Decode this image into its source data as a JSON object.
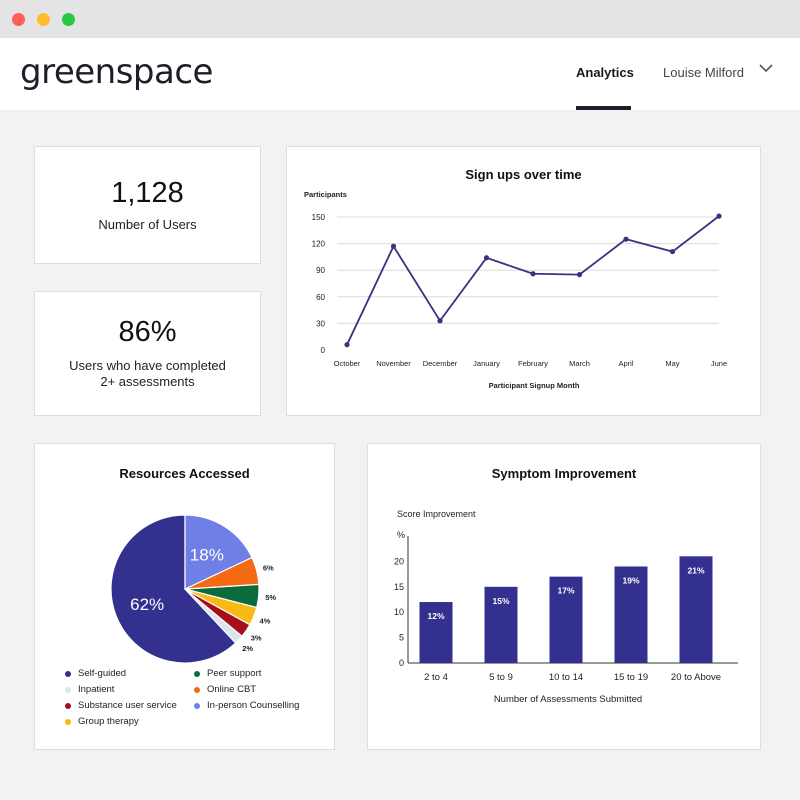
{
  "header": {
    "logo": "greenspace",
    "nav_analytics": "Analytics",
    "user_name": "Louise Milford"
  },
  "stats": {
    "users_value": "1,128",
    "users_label": "Number of Users",
    "completed_value": "86%",
    "completed_label_1": "Users who have completed",
    "completed_label_2": "2+ assessments"
  },
  "colors": {
    "accent": "#33308f",
    "line": "#363482",
    "pie_light": "#6f7fe6"
  },
  "chart_data": [
    {
      "type": "line",
      "title": "Sign ups over time",
      "ylabel": "Participants",
      "xlabel": "Participant Signup Month",
      "x": [
        "October",
        "November",
        "December",
        "January",
        "February",
        "March",
        "April",
        "May",
        "June"
      ],
      "series": [
        {
          "values": [
            6,
            117,
            33,
            104,
            86,
            85,
            125,
            111,
            151
          ]
        }
      ],
      "yticks": [
        0,
        30,
        60,
        90,
        120,
        150
      ],
      "ylim": [
        0,
        150
      ],
      "grid": true
    },
    {
      "type": "pie",
      "title": "Resources Accessed",
      "slices": [
        {
          "label": "Self-guided",
          "value": 62,
          "display": "62%",
          "color": "#33308f"
        },
        {
          "label": "Inpatient",
          "value": 2,
          "display": "2%",
          "color": "#dfe3ef"
        },
        {
          "label": "Substance user service",
          "value": 3,
          "display": "3%",
          "color": "#a50f1a"
        },
        {
          "label": "Group therapy",
          "value": 4,
          "display": "4%",
          "color": "#f7b916"
        },
        {
          "label": "Peer support",
          "value": 5,
          "display": "5%",
          "color": "#0c6b3d"
        },
        {
          "label": "Online CBT",
          "value": 6,
          "display": "6%",
          "color": "#f36a12"
        },
        {
          "label": "In-person Counselling",
          "value": 18,
          "display": "18%",
          "color": "#6f7fe6"
        }
      ],
      "legend_order": [
        "Self-guided",
        "Peer support",
        "Inpatient",
        "Online CBT",
        "Substance user service",
        "In-person Counselling",
        "Group therapy"
      ],
      "legend_placement": "bottom"
    },
    {
      "type": "bar",
      "title": "Symptom Improvement",
      "subtitle": "Score Improvement",
      "ylabel": "%",
      "xlabel": "Number of Assessments Submitted",
      "categories": [
        "2 to 4",
        "5 to 9",
        "10 to 14",
        "15 to 19",
        "20 to Above"
      ],
      "values": [
        12,
        15,
        17,
        19,
        21
      ],
      "labels": [
        "12%",
        "15%",
        "17%",
        "19%",
        "21%"
      ],
      "yticks": [
        0,
        5,
        10,
        15,
        20
      ],
      "ylim": [
        0,
        25
      ],
      "color": "#33308f"
    }
  ]
}
